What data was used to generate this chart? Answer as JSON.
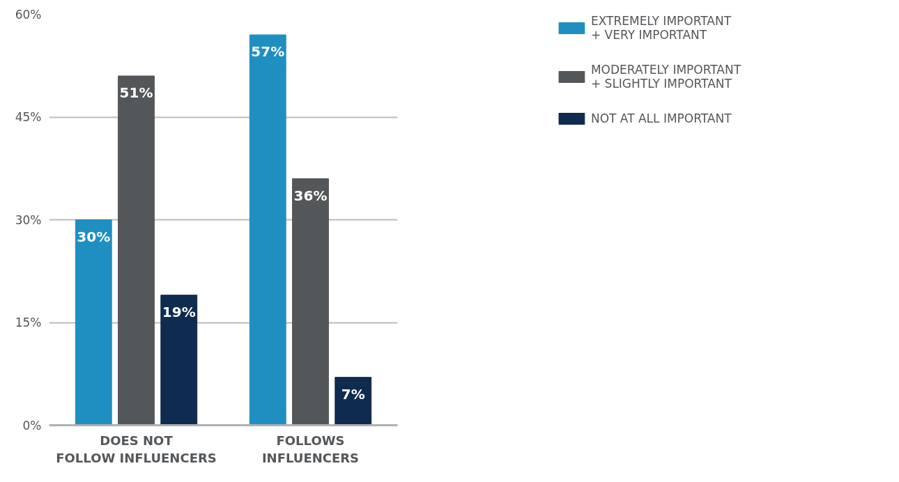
{
  "chart_data": {
    "type": "bar",
    "categories": [
      "DOES NOT\nFOLLOW INFLUENCERS",
      "FOLLOWS\nINFLUENCERS"
    ],
    "series": [
      {
        "name": "EXTREMELY IMPORTANT\n+ VERY IMPORTANT",
        "color": "#1f8fc1",
        "values": [
          30,
          57
        ],
        "value_labels": [
          "30%",
          "57%"
        ]
      },
      {
        "name": "MODERATELY IMPORTANT\n+ SLIGHTLY IMPORTANT",
        "color": "#54575a",
        "values": [
          51,
          36
        ],
        "value_labels": [
          "51%",
          "36%"
        ]
      },
      {
        "name": "NOT AT ALL IMPORTANT",
        "color": "#0f2b4f",
        "values": [
          19,
          7
        ],
        "value_labels": [
          "19%",
          "7%"
        ]
      }
    ],
    "ylim": [
      0,
      60
    ],
    "yticks": [
      {
        "value": 0,
        "label": "0%"
      },
      {
        "value": 15,
        "label": "15%"
      },
      {
        "value": 30,
        "label": "30%"
      },
      {
        "value": 45,
        "label": "45%"
      },
      {
        "value": 60,
        "label": "60%"
      }
    ],
    "grid": "y",
    "legend": "top right",
    "data_labels": true
  }
}
